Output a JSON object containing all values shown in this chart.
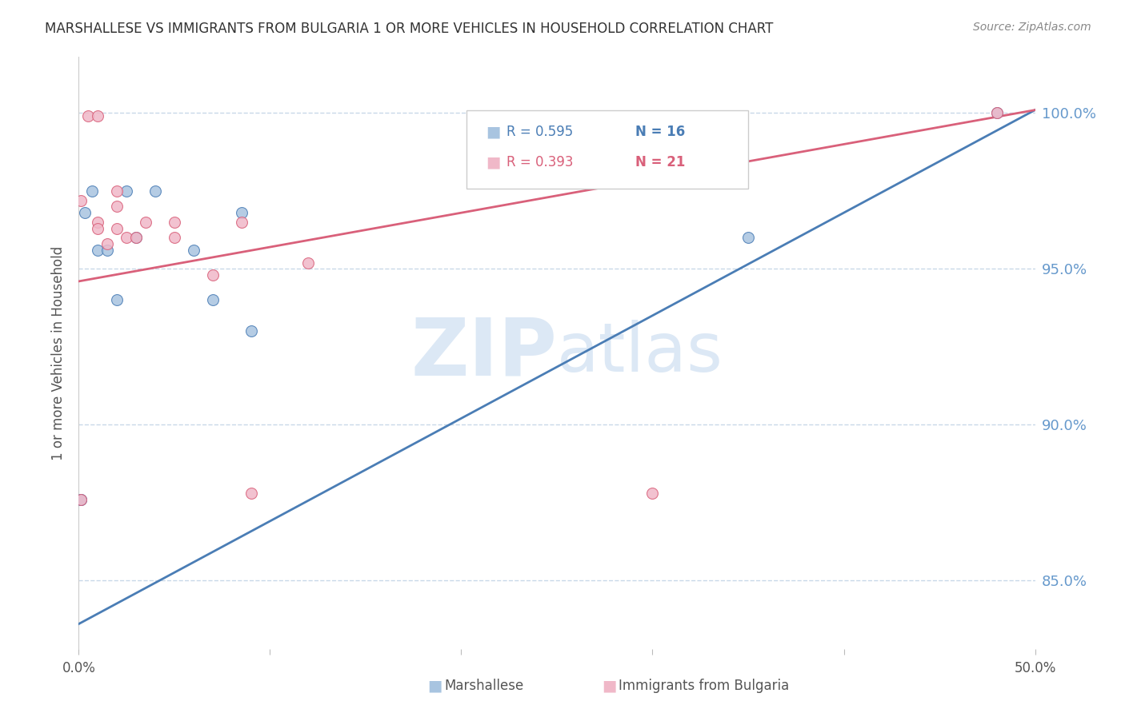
{
  "title": "MARSHALLESE VS IMMIGRANTS FROM BULGARIA 1 OR MORE VEHICLES IN HOUSEHOLD CORRELATION CHART",
  "source": "Source: ZipAtlas.com",
  "ylabel": "1 or more Vehicles in Household",
  "xmin": 0.0,
  "xmax": 0.5,
  "ymin": 0.828,
  "ymax": 1.018,
  "yticks": [
    0.85,
    0.9,
    0.95,
    1.0
  ],
  "ytick_labels": [
    "85.0%",
    "90.0%",
    "95.0%",
    "100.0%"
  ],
  "blue_R": 0.595,
  "blue_N": 16,
  "pink_R": 0.393,
  "pink_N": 21,
  "blue_color": "#a8c4e0",
  "blue_line_color": "#4a7db5",
  "pink_color": "#f0b8c8",
  "pink_line_color": "#d9607a",
  "legend_label_blue": "Marshallese",
  "legend_label_pink": "Immigrants from Bulgaria",
  "watermark_zip": "ZIP",
  "watermark_atlas": "atlas",
  "blue_scatter_x": [
    0.001,
    0.001,
    0.003,
    0.007,
    0.01,
    0.015,
    0.02,
    0.025,
    0.03,
    0.04,
    0.06,
    0.07,
    0.085,
    0.09,
    0.35,
    0.48
  ],
  "blue_scatter_y": [
    0.876,
    0.876,
    0.968,
    0.975,
    0.956,
    0.956,
    0.94,
    0.975,
    0.96,
    0.975,
    0.956,
    0.94,
    0.968,
    0.93,
    0.96,
    1.0
  ],
  "pink_scatter_x": [
    0.001,
    0.001,
    0.005,
    0.01,
    0.01,
    0.01,
    0.015,
    0.02,
    0.02,
    0.02,
    0.025,
    0.03,
    0.035,
    0.05,
    0.05,
    0.07,
    0.085,
    0.09,
    0.12,
    0.3,
    0.48
  ],
  "pink_scatter_y": [
    0.876,
    0.972,
    0.999,
    0.999,
    0.965,
    0.963,
    0.958,
    0.975,
    0.963,
    0.97,
    0.96,
    0.96,
    0.965,
    0.965,
    0.96,
    0.948,
    0.965,
    0.878,
    0.952,
    0.878,
    1.0
  ],
  "blue_line_x": [
    0.0,
    0.5
  ],
  "blue_line_y": [
    0.836,
    1.001
  ],
  "pink_line_x": [
    0.0,
    0.5
  ],
  "pink_line_y": [
    0.946,
    1.001
  ],
  "marker_size": 100,
  "background_color": "#ffffff",
  "grid_color": "#c8d8e8",
  "title_color": "#333333",
  "axis_color": "#6699cc",
  "watermark_color": "#dce8f5"
}
